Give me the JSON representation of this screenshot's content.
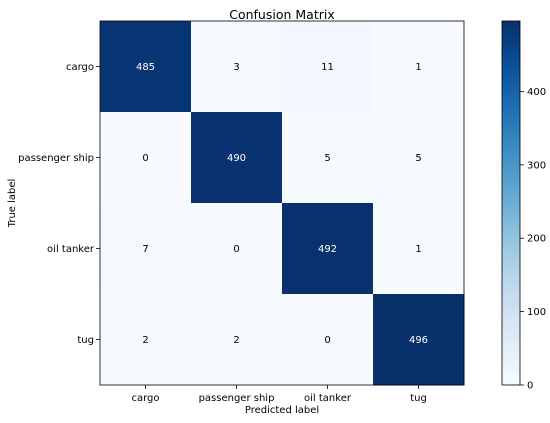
{
  "chart_data": {
    "type": "heatmap",
    "title": "Confusion Matrix",
    "xlabel": "Predicted label",
    "ylabel": "True label",
    "x_categories": [
      "cargo",
      "passenger ship",
      "oil tanker",
      "tug"
    ],
    "y_categories": [
      "cargo",
      "passenger ship",
      "oil tanker",
      "tug"
    ],
    "values": [
      [
        485,
        3,
        11,
        1
      ],
      [
        0,
        490,
        5,
        5
      ],
      [
        7,
        0,
        492,
        1
      ],
      [
        2,
        2,
        0,
        496
      ]
    ],
    "colormap": "Blues",
    "colorbar": {
      "range": [
        0,
        496
      ],
      "ticks": [
        0,
        100,
        200,
        300,
        400
      ]
    },
    "grid": false
  }
}
